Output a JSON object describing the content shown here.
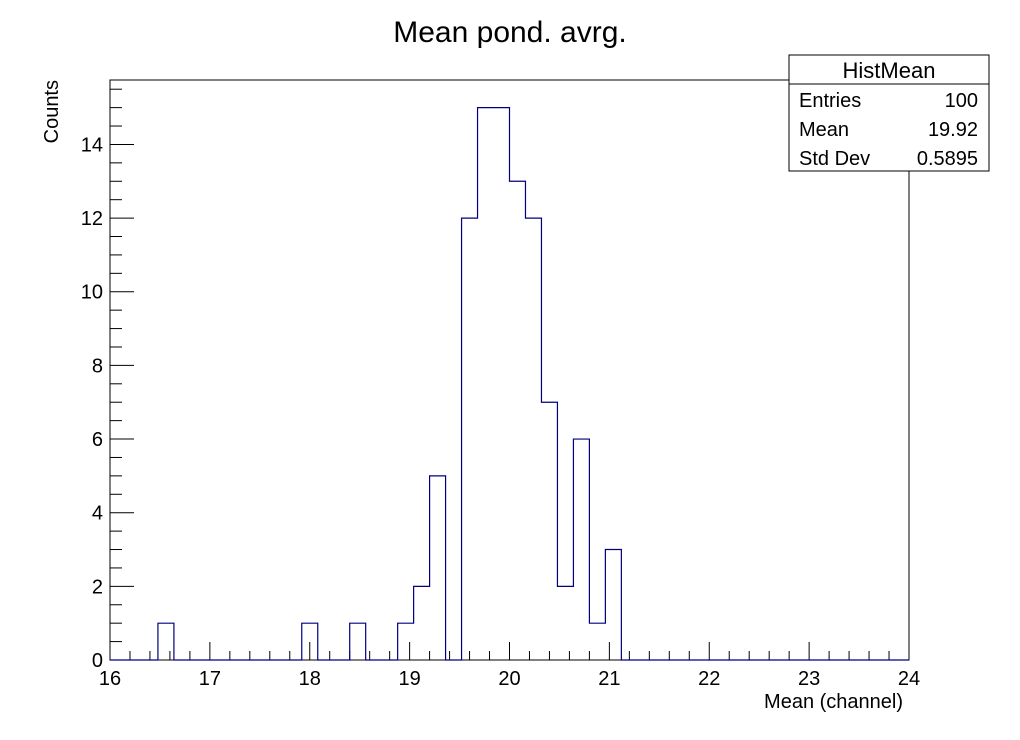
{
  "chart_data": {
    "type": "bar",
    "title": "Mean pond. avrg.",
    "xlabel": "Mean (channel)",
    "ylabel": "Counts",
    "xlim": [
      16,
      24
    ],
    "ylim": [
      0,
      15.75
    ],
    "xticks": [
      "16",
      "17",
      "18",
      "19",
      "20",
      "21",
      "22",
      "23",
      "24"
    ],
    "yticks": [
      "0",
      "2",
      "4",
      "6",
      "8",
      "10",
      "12",
      "14"
    ],
    "bins": {
      "edges_start": 16.0,
      "bin_width": 0.16,
      "count": 50
    },
    "values": [
      0,
      0,
      0,
      1,
      0,
      0,
      0,
      0,
      0,
      0,
      0,
      0,
      1,
      0,
      0,
      1,
      0,
      0,
      1,
      2,
      5,
      0,
      12,
      15,
      15,
      13,
      12,
      7,
      2,
      6,
      1,
      3,
      0,
      0,
      0,
      0,
      0,
      0,
      0,
      0,
      0,
      0,
      0,
      0,
      0,
      0,
      0,
      0,
      0,
      0
    ],
    "line_color": "#000080",
    "grid": false,
    "stats_box": {
      "title": "HistMean",
      "placement": "top-right",
      "rows": [
        {
          "label": "Entries",
          "value": "100"
        },
        {
          "label": "Mean",
          "value": "19.92"
        },
        {
          "label": "Std Dev",
          "value": "0.5895"
        }
      ]
    }
  }
}
